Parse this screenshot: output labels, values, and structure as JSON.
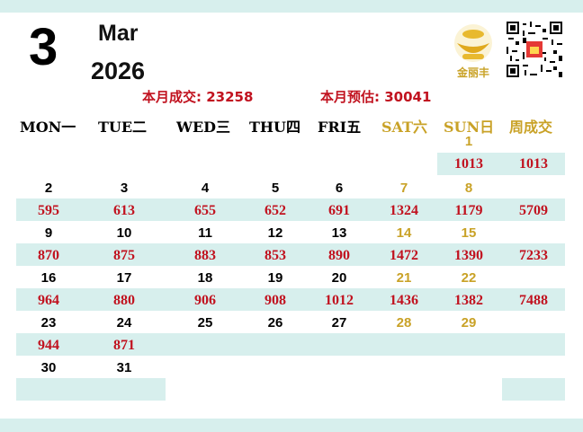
{
  "header": {
    "month_number": "3",
    "month_name": "Mar",
    "year": "2026",
    "logo_text": "金丽丰",
    "logo_icon": "coin-bowl-icon",
    "qr_icon": "qr-code-icon"
  },
  "summary": {
    "month_total": "本月成交: 23258",
    "month_forecast": "本月预估: 30041"
  },
  "weekdays": [
    "MON一",
    "TUE二",
    "WED三",
    "THU四",
    "FRI五",
    "SAT六",
    "SUN日",
    "周成交"
  ],
  "colors": {
    "accent_red": "#c1121f",
    "weekend_gold": "#c9a227",
    "band": "#d7efed"
  },
  "weeks": [
    {
      "dates": [
        "",
        "",
        "",
        "",
        "",
        "",
        "1"
      ],
      "values": [
        "",
        "",
        "",
        "",
        "",
        "",
        "1013"
      ],
      "week_total": "1013"
    },
    {
      "dates": [
        "2",
        "3",
        "4",
        "5",
        "6",
        "7",
        "8"
      ],
      "values": [
        "595",
        "613",
        "655",
        "652",
        "691",
        "1324",
        "1179"
      ],
      "week_total": "5709"
    },
    {
      "dates": [
        "9",
        "10",
        "11",
        "12",
        "13",
        "14",
        "15"
      ],
      "values": [
        "870",
        "875",
        "883",
        "853",
        "890",
        "1472",
        "1390"
      ],
      "week_total": "7233"
    },
    {
      "dates": [
        "16",
        "17",
        "18",
        "19",
        "20",
        "21",
        "22"
      ],
      "values": [
        "964",
        "880",
        "906",
        "908",
        "1012",
        "1436",
        "1382"
      ],
      "week_total": "7488"
    },
    {
      "dates": [
        "23",
        "24",
        "25",
        "26",
        "27",
        "28",
        "29"
      ],
      "values": [
        "944",
        "871",
        "",
        "",
        "",
        "",
        ""
      ],
      "week_total": ""
    },
    {
      "dates": [
        "30",
        "31",
        "",
        "",
        "",
        "",
        ""
      ],
      "values": [
        "",
        "",
        "",
        "",
        "",
        "",
        ""
      ],
      "week_total": ""
    }
  ]
}
